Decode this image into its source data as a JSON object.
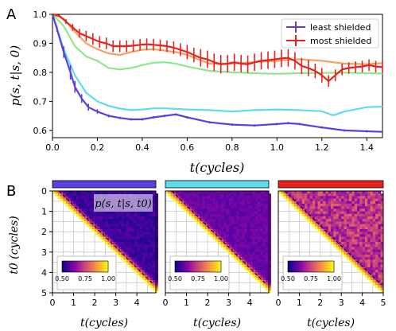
{
  "panel_labels": [
    "A",
    "B"
  ],
  "chart_data": [
    {
      "type": "line",
      "ylabel": "p(s, t|s, 0)",
      "xlabel": "t(cycles)",
      "xlim": [
        0,
        1.47
      ],
      "ylim": [
        0.575,
        1.0
      ],
      "xticks": [
        "0.0",
        "0.2",
        "0.4",
        "0.6",
        "0.8",
        "1.0",
        "1.2",
        "1.4"
      ],
      "yticks": [
        "0.6",
        "0.7",
        "0.8",
        "0.9",
        "1.0"
      ],
      "legend_position": "top-right",
      "legend": [
        "least shielded",
        "most shielded"
      ],
      "series": [
        {
          "name": "least shielded",
          "color": "#5b3fe0",
          "errorbars": true,
          "x": [
            0,
            0.02,
            0.05,
            0.08,
            0.1,
            0.13,
            0.16,
            0.2,
            0.25,
            0.3,
            0.35,
            0.4,
            0.45,
            0.5,
            0.55,
            0.6,
            0.7,
            0.8,
            0.9,
            1.0,
            1.05,
            1.1,
            1.2,
            1.3,
            1.4,
            1.47
          ],
          "y": [
            1.0,
            0.95,
            0.87,
            0.8,
            0.75,
            0.71,
            0.68,
            0.665,
            0.65,
            0.643,
            0.638,
            0.638,
            0.645,
            0.65,
            0.655,
            0.645,
            0.628,
            0.62,
            0.617,
            0.622,
            0.625,
            0.622,
            0.61,
            0.6,
            0.597,
            0.595
          ],
          "err": [
            0,
            0.01,
            0.02,
            0.025,
            0.02,
            0.015,
            0.012,
            0.008,
            0.005,
            0.004,
            0.004,
            0.004,
            0.004,
            0.004,
            0.004,
            0.004,
            0.004,
            0.004,
            0.004,
            0.004,
            0.004,
            0.004,
            0.004,
            0.004,
            0.004,
            0
          ]
        },
        {
          "name": "",
          "color": "#5fdcec",
          "errorbars": false,
          "x": [
            0,
            0.05,
            0.1,
            0.15,
            0.2,
            0.25,
            0.3,
            0.35,
            0.4,
            0.45,
            0.5,
            0.55,
            0.6,
            0.7,
            0.8,
            0.9,
            1.0,
            1.1,
            1.2,
            1.25,
            1.3,
            1.4,
            1.47
          ],
          "y": [
            1.0,
            0.88,
            0.79,
            0.73,
            0.7,
            0.685,
            0.675,
            0.67,
            0.672,
            0.676,
            0.676,
            0.674,
            0.672,
            0.67,
            0.665,
            0.67,
            0.672,
            0.67,
            0.666,
            0.652,
            0.665,
            0.68,
            0.682
          ]
        },
        {
          "name": "",
          "color": "#8ee88a",
          "errorbars": false,
          "x": [
            0,
            0.05,
            0.1,
            0.15,
            0.2,
            0.25,
            0.3,
            0.35,
            0.4,
            0.45,
            0.5,
            0.55,
            0.6,
            0.7,
            0.8,
            0.9,
            1.0,
            1.1,
            1.2,
            1.3,
            1.4,
            1.47
          ],
          "y": [
            1.0,
            0.96,
            0.89,
            0.855,
            0.84,
            0.815,
            0.81,
            0.815,
            0.825,
            0.833,
            0.835,
            0.83,
            0.82,
            0.805,
            0.8,
            0.797,
            0.795,
            0.797,
            0.798,
            0.799,
            0.797,
            0.796
          ]
        },
        {
          "name": "",
          "color": "#f7a060",
          "errorbars": false,
          "x": [
            0,
            0.05,
            0.1,
            0.15,
            0.2,
            0.25,
            0.3,
            0.35,
            0.4,
            0.45,
            0.5,
            0.55,
            0.6,
            0.7,
            0.8,
            0.9,
            1.0,
            1.1,
            1.2,
            1.3,
            1.4,
            1.47
          ],
          "y": [
            1.0,
            0.985,
            0.94,
            0.9,
            0.88,
            0.865,
            0.86,
            0.87,
            0.878,
            0.88,
            0.875,
            0.87,
            0.86,
            0.83,
            0.83,
            0.835,
            0.84,
            0.845,
            0.84,
            0.83,
            0.828,
            0.832
          ]
        },
        {
          "name": "most shielded",
          "color": "#e8231e",
          "errorbars": true,
          "x": [
            0,
            0.03,
            0.06,
            0.09,
            0.12,
            0.15,
            0.18,
            0.21,
            0.24,
            0.27,
            0.3,
            0.33,
            0.36,
            0.39,
            0.42,
            0.45,
            0.48,
            0.51,
            0.54,
            0.57,
            0.6,
            0.63,
            0.66,
            0.69,
            0.72,
            0.75,
            0.78,
            0.81,
            0.84,
            0.87,
            0.9,
            0.93,
            0.96,
            0.99,
            1.02,
            1.05,
            1.08,
            1.11,
            1.14,
            1.17,
            1.2,
            1.23,
            1.26,
            1.29,
            1.32,
            1.35,
            1.38,
            1.41,
            1.44,
            1.47
          ],
          "y": [
            1.0,
            0.995,
            0.975,
            0.955,
            0.935,
            0.925,
            0.915,
            0.905,
            0.9,
            0.89,
            0.89,
            0.89,
            0.892,
            0.895,
            0.897,
            0.895,
            0.893,
            0.89,
            0.885,
            0.878,
            0.87,
            0.86,
            0.85,
            0.845,
            0.835,
            0.828,
            0.83,
            0.835,
            0.83,
            0.828,
            0.835,
            0.84,
            0.842,
            0.845,
            0.848,
            0.85,
            0.84,
            0.822,
            0.815,
            0.805,
            0.79,
            0.77,
            0.79,
            0.81,
            0.815,
            0.818,
            0.82,
            0.825,
            0.82,
            0.818
          ],
          "err": [
            0,
            0.003,
            0.008,
            0.012,
            0.015,
            0.018,
            0.02,
            0.02,
            0.02,
            0.02,
            0.02,
            0.02,
            0.02,
            0.02,
            0.02,
            0.02,
            0.02,
            0.02,
            0.022,
            0.022,
            0.025,
            0.025,
            0.03,
            0.03,
            0.03,
            0.032,
            0.03,
            0.03,
            0.03,
            0.03,
            0.03,
            0.03,
            0.03,
            0.03,
            0.03,
            0.03,
            0.03,
            0.028,
            0.028,
            0.025,
            0.025,
            0.02,
            0.02,
            0.02,
            0.02,
            0.02,
            0.02,
            0.02,
            0.02,
            0.02
          ]
        }
      ]
    },
    {
      "type": "heatmap",
      "ylabel": "t0 (cycles)",
      "xlabel": "t(cycles)",
      "annotation": "p(s, t|s, t0)",
      "colorbar": {
        "ticks": [
          "0.50",
          "0.75",
          "1.00"
        ],
        "range": [
          0.5,
          1.0
        ],
        "colormap": "plasma"
      },
      "grid": true,
      "panels": [
        {
          "header_color": "#5b3fe0",
          "xticks": [
            "0",
            "1",
            "2",
            "3",
            "4"
          ],
          "yticks": [
            "0",
            "1",
            "2",
            "3",
            "4",
            "5"
          ],
          "xlim": [
            0,
            4.9
          ],
          "ylim": [
            0,
            5
          ],
          "typical_value": 0.55
        },
        {
          "header_color": "#5fdcec",
          "xticks": [
            "0",
            "1",
            "2",
            "3",
            "4"
          ],
          "yticks": [],
          "xlim": [
            0,
            4.9
          ],
          "ylim": [
            0,
            5
          ],
          "typical_value": 0.6
        },
        {
          "header_color": "#e8231e",
          "xticks": [
            "0",
            "1",
            "2",
            "3",
            "4",
            "5"
          ],
          "yticks": [],
          "xlim": [
            0,
            5
          ],
          "ylim": [
            0,
            5
          ],
          "typical_value": 0.72
        }
      ]
    }
  ]
}
